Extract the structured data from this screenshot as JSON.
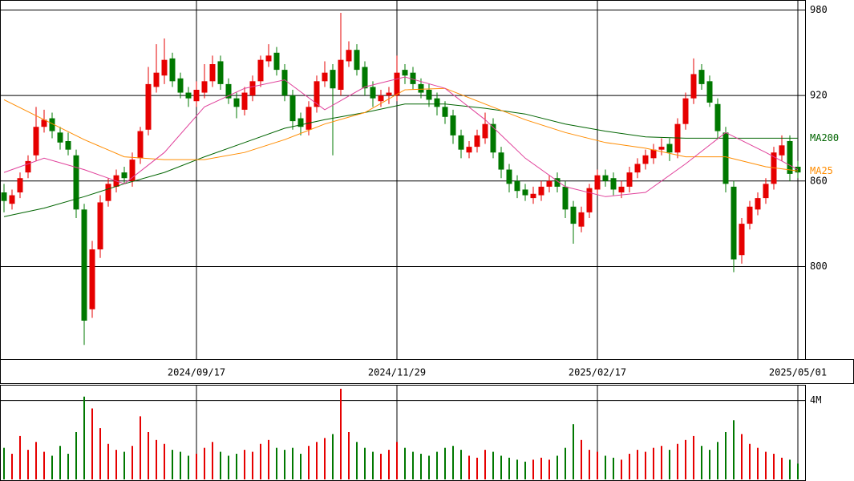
{
  "chart_data": {
    "type": "candlestick",
    "categories": [
      null,
      null,
      null,
      null,
      null,
      null,
      null,
      null,
      null,
      null,
      null,
      null,
      null,
      null,
      null,
      null,
      null,
      null,
      null,
      null,
      null,
      null,
      null,
      null,
      "2024/09/17",
      null,
      null,
      null,
      null,
      null,
      null,
      null,
      null,
      null,
      null,
      null,
      null,
      null,
      null,
      null,
      null,
      null,
      null,
      null,
      null,
      null,
      null,
      null,
      null,
      "2024/11/29",
      null,
      null,
      null,
      null,
      null,
      null,
      null,
      null,
      null,
      null,
      null,
      null,
      null,
      null,
      null,
      null,
      null,
      null,
      null,
      null,
      null,
      null,
      null,
      null,
      "2025/02/17",
      null,
      null,
      null,
      null,
      null,
      null,
      null,
      null,
      null,
      null,
      null,
      null,
      null,
      null,
      null,
      null,
      null,
      null,
      null,
      null,
      null,
      null,
      null,
      null,
      "2025/05/01"
    ],
    "open": [
      852,
      844,
      852,
      866,
      878,
      898,
      904,
      894,
      888,
      878,
      840,
      770,
      812,
      846,
      856,
      866,
      860,
      876,
      896,
      926,
      934,
      946,
      932,
      922,
      916,
      922,
      930,
      944,
      928,
      918,
      910,
      920,
      930,
      944,
      950,
      938,
      920,
      904,
      896,
      912,
      930,
      938,
      924,
      944,
      952,
      940,
      926,
      916,
      920,
      920,
      938,
      936,
      928,
      924,
      918,
      912,
      906,
      892,
      880,
      884,
      890,
      900,
      880,
      868,
      860,
      854,
      848,
      850,
      856,
      862,
      856,
      842,
      828,
      838,
      854,
      864,
      862,
      852,
      856,
      866,
      872,
      876,
      882,
      886,
      880,
      900,
      918,
      938,
      930,
      914,
      894,
      856,
      808,
      830,
      840,
      848,
      858,
      878,
      888,
      870
    ],
    "high": [
      858,
      854,
      866,
      878,
      912,
      910,
      908,
      898,
      894,
      882,
      844,
      818,
      850,
      862,
      868,
      870,
      880,
      898,
      940,
      956,
      960,
      950,
      936,
      926,
      930,
      942,
      948,
      948,
      932,
      922,
      926,
      934,
      948,
      956,
      954,
      942,
      924,
      908,
      916,
      934,
      944,
      942,
      978,
      958,
      956,
      944,
      930,
      924,
      926,
      948,
      942,
      940,
      932,
      928,
      922,
      916,
      910,
      896,
      888,
      896,
      908,
      904,
      884,
      872,
      864,
      858,
      856,
      860,
      864,
      866,
      860,
      846,
      842,
      858,
      868,
      868,
      866,
      860,
      870,
      876,
      882,
      886,
      890,
      890,
      904,
      922,
      946,
      942,
      934,
      918,
      898,
      860,
      834,
      846,
      852,
      862,
      884,
      892,
      892,
      874
    ],
    "low": [
      838,
      840,
      848,
      862,
      874,
      894,
      890,
      882,
      878,
      834,
      745,
      764,
      806,
      842,
      852,
      858,
      856,
      872,
      892,
      922,
      928,
      926,
      918,
      912,
      912,
      918,
      926,
      924,
      914,
      904,
      906,
      916,
      926,
      940,
      934,
      916,
      896,
      892,
      892,
      908,
      926,
      878,
      920,
      940,
      934,
      920,
      912,
      912,
      914,
      916,
      928,
      924,
      918,
      912,
      906,
      900,
      886,
      876,
      876,
      880,
      886,
      876,
      862,
      852,
      848,
      846,
      844,
      846,
      852,
      852,
      834,
      816,
      824,
      834,
      850,
      856,
      850,
      848,
      852,
      862,
      868,
      872,
      878,
      874,
      876,
      896,
      914,
      924,
      912,
      890,
      852,
      796,
      802,
      826,
      836,
      844,
      854,
      874,
      860,
      862
    ],
    "close": [
      846,
      850,
      862,
      874,
      898,
      903,
      895,
      887,
      882,
      840,
      762,
      812,
      845,
      858,
      864,
      862,
      875,
      895,
      928,
      936,
      945,
      930,
      922,
      918,
      924,
      930,
      942,
      928,
      918,
      912,
      922,
      930,
      945,
      948,
      938,
      920,
      902,
      898,
      912,
      930,
      936,
      925,
      945,
      952,
      938,
      925,
      918,
      920,
      922,
      936,
      934,
      928,
      922,
      917,
      912,
      905,
      892,
      882,
      884,
      892,
      900,
      880,
      868,
      858,
      853,
      850,
      851,
      856,
      860,
      856,
      840,
      830,
      838,
      855,
      864,
      860,
      854,
      856,
      866,
      872,
      878,
      882,
      884,
      880,
      900,
      918,
      935,
      928,
      915,
      895,
      858,
      805,
      830,
      842,
      848,
      858,
      880,
      885,
      865,
      866
    ],
    "volume": [
      1.6,
      1.3,
      2.2,
      1.5,
      1.9,
      1.4,
      1.2,
      1.7,
      1.3,
      2.4,
      4.2,
      3.6,
      2.6,
      1.8,
      1.5,
      1.4,
      1.7,
      3.2,
      2.4,
      2.0,
      1.8,
      1.5,
      1.4,
      1.2,
      1.3,
      1.6,
      1.9,
      1.4,
      1.2,
      1.3,
      1.5,
      1.4,
      1.8,
      2.0,
      1.6,
      1.5,
      1.6,
      1.3,
      1.7,
      1.9,
      2.1,
      2.3,
      4.6,
      2.4,
      1.9,
      1.6,
      1.4,
      1.3,
      1.5,
      1.9,
      1.6,
      1.4,
      1.3,
      1.2,
      1.4,
      1.6,
      1.7,
      1.5,
      1.2,
      1.1,
      1.5,
      1.4,
      1.2,
      1.1,
      1.0,
      0.9,
      1.0,
      1.1,
      1.0,
      1.2,
      1.6,
      2.8,
      2.0,
      1.5,
      1.4,
      1.2,
      1.1,
      1.0,
      1.3,
      1.5,
      1.4,
      1.6,
      1.7,
      1.5,
      1.8,
      2.0,
      2.2,
      1.7,
      1.5,
      1.9,
      2.4,
      3.0,
      2.3,
      1.8,
      1.6,
      1.4,
      1.3,
      1.1,
      1.0,
      0.8
    ],
    "up_color": "#e60000",
    "down_color": "#007800",
    "ylim": [
      735,
      987
    ],
    "yticks": [
      800,
      860,
      920,
      980
    ],
    "volume_ylim": [
      0,
      4.8
    ],
    "volume_yticks": [
      {
        "value": 4,
        "label": "4M"
      }
    ],
    "grid": true,
    "series": [
      {
        "name": "MA200",
        "color": "#006400",
        "x": [
          0,
          5,
          10,
          15,
          20,
          25,
          30,
          35,
          40,
          45,
          50,
          55,
          60,
          65,
          70,
          75,
          80,
          85,
          90,
          95,
          99
        ],
        "values": [
          835,
          841,
          849,
          858,
          866,
          877,
          887,
          897,
          903,
          908,
          914,
          914,
          911,
          907,
          900,
          895,
          891,
          890,
          890,
          890,
          890
        ]
      },
      {
        "name": "MA25",
        "color": "#ff8c00",
        "x": [
          0,
          5,
          10,
          15,
          20,
          25,
          30,
          35,
          40,
          45,
          50,
          55,
          60,
          65,
          70,
          75,
          80,
          85,
          90,
          95,
          99
        ],
        "values": [
          917,
          903,
          889,
          877,
          875,
          875,
          880,
          889,
          900,
          908,
          924,
          925,
          914,
          903,
          894,
          887,
          883,
          877,
          877,
          870,
          867
        ]
      },
      {
        "color": "#e0409a",
        "x": [
          0,
          5,
          10,
          15,
          20,
          25,
          30,
          35,
          40,
          45,
          50,
          55,
          60,
          65,
          70,
          75,
          80,
          85,
          90,
          95,
          99
        ],
        "values": [
          866,
          876,
          868,
          858,
          880,
          912,
          925,
          931,
          910,
          926,
          933,
          925,
          903,
          876,
          856,
          849,
          852,
          872,
          894,
          880,
          868
        ]
      }
    ]
  }
}
